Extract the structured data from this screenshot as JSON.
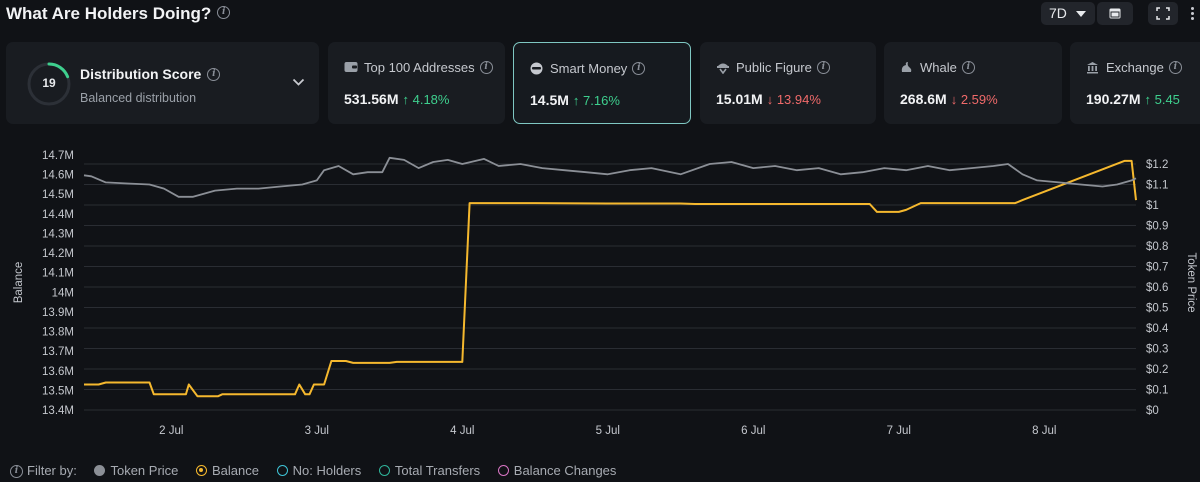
{
  "header": {
    "title": "What Are Holders Doing?",
    "range_label": "7D"
  },
  "distribution": {
    "score": "19",
    "score_fraction": 0.19,
    "title": "Distribution Score",
    "subtitle": "Balanced distribution"
  },
  "cards": [
    {
      "label": "Top 100 Addresses",
      "value": "531.56M",
      "change": "↑ 4.18%",
      "direction": "up",
      "icon": "wallet-icon"
    },
    {
      "label": "Smart Money",
      "value": "14.5M",
      "change": "↑ 7.16%",
      "direction": "up",
      "icon": "smart-money-icon",
      "selected": true
    },
    {
      "label": "Public Figure",
      "value": "15.01M",
      "change": "↓ 13.94%",
      "direction": "down",
      "icon": "public-figure-icon"
    },
    {
      "label": "Whale",
      "value": "268.6M",
      "change": "↓ 2.59%",
      "direction": "down",
      "icon": "whale-icon"
    },
    {
      "label": "Exchange",
      "value": "190.27M",
      "change": "↑ 5.45",
      "direction": "up",
      "icon": "exchange-icon"
    }
  ],
  "colors": {
    "balance": "#f5b82e",
    "token_price": "#8b8f96",
    "up": "#3ecf8e",
    "down": "#f06a6a",
    "holders": "#3ec3d6",
    "transfers": "#2fb59a",
    "balance_changes": "#d874c4"
  },
  "chart_data": {
    "type": "line",
    "ylabel": "Balance",
    "y2label": "Token Price",
    "ylim": [
      13.4,
      14.7
    ],
    "y2lim": [
      0,
      1.2
    ],
    "left_ticks": [
      "14.7M",
      "14.6M",
      "14.5M",
      "14.4M",
      "14.3M",
      "14.2M",
      "14.1M",
      "14M",
      "13.9M",
      "13.8M",
      "13.7M",
      "13.6M",
      "13.5M",
      "13.4M"
    ],
    "right_ticks": [
      "$1.2",
      "$1.1",
      "$1",
      "$0.9",
      "$0.8",
      "$0.7",
      "$0.6",
      "$0.5",
      "$0.4",
      "$0.3",
      "$0.2",
      "$0.1",
      "$0"
    ],
    "x_ticks": [
      {
        "label": "2 Jul",
        "x": 2
      },
      {
        "label": "3 Jul",
        "x": 3
      },
      {
        "label": "4 Jul",
        "x": 4
      },
      {
        "label": "5 Jul",
        "x": 5
      },
      {
        "label": "6 Jul",
        "x": 6
      },
      {
        "label": "7 Jul",
        "x": 7
      },
      {
        "label": "8 Jul",
        "x": 8
      }
    ],
    "xlim": [
      1.4,
      8.63
    ],
    "grid": true,
    "series": [
      {
        "name": "Balance",
        "axis": "left",
        "x": [
          1.4,
          1.5,
          1.55,
          1.6,
          1.85,
          1.88,
          1.95,
          2.1,
          2.12,
          2.18,
          2.3,
          2.32,
          2.35,
          2.85,
          2.88,
          2.92,
          2.95,
          2.98,
          3.05,
          3.1,
          3.2,
          3.25,
          3.5,
          3.55,
          4.0,
          4.05,
          4.5,
          5.0,
          5.5,
          5.6,
          5.65,
          6.0,
          6.5,
          6.8,
          6.85,
          6.9,
          7.0,
          7.05,
          7.15,
          7.2,
          7.8,
          7.85,
          8.55,
          8.6,
          8.63
        ],
        "y": [
          13.53,
          13.53,
          13.54,
          13.54,
          13.54,
          13.48,
          13.48,
          13.48,
          13.53,
          13.47,
          13.47,
          13.47,
          13.48,
          13.48,
          13.53,
          13.48,
          13.48,
          13.53,
          13.53,
          13.65,
          13.65,
          13.64,
          13.64,
          13.645,
          13.645,
          14.455,
          14.455,
          14.453,
          14.453,
          14.45,
          14.45,
          14.45,
          14.45,
          14.45,
          14.41,
          14.41,
          14.41,
          14.42,
          14.455,
          14.455,
          14.455,
          14.47,
          14.67,
          14.67,
          14.47
        ]
      },
      {
        "name": "Token Price",
        "axis": "right",
        "x": [
          1.4,
          1.45,
          1.55,
          1.7,
          1.85,
          1.95,
          2.05,
          2.15,
          2.3,
          2.45,
          2.6,
          2.75,
          2.9,
          3.0,
          3.05,
          3.15,
          3.25,
          3.35,
          3.45,
          3.5,
          3.6,
          3.7,
          3.8,
          3.9,
          4.0,
          4.15,
          4.25,
          4.4,
          4.55,
          4.7,
          4.85,
          5.0,
          5.15,
          5.3,
          5.5,
          5.7,
          5.85,
          6.0,
          6.15,
          6.3,
          6.45,
          6.6,
          6.75,
          6.9,
          7.05,
          7.2,
          7.35,
          7.5,
          7.65,
          7.75,
          7.85,
          7.95,
          8.1,
          8.25,
          8.4,
          8.5,
          8.6,
          8.63
        ],
        "y": [
          1.145,
          1.14,
          1.11,
          1.105,
          1.1,
          1.08,
          1.04,
          1.04,
          1.07,
          1.08,
          1.08,
          1.09,
          1.1,
          1.12,
          1.17,
          1.19,
          1.15,
          1.16,
          1.16,
          1.23,
          1.22,
          1.18,
          1.21,
          1.22,
          1.2,
          1.225,
          1.19,
          1.2,
          1.18,
          1.17,
          1.16,
          1.15,
          1.17,
          1.18,
          1.15,
          1.2,
          1.21,
          1.18,
          1.19,
          1.17,
          1.18,
          1.15,
          1.16,
          1.18,
          1.17,
          1.19,
          1.17,
          1.18,
          1.19,
          1.2,
          1.15,
          1.12,
          1.11,
          1.1,
          1.09,
          1.1,
          1.12,
          1.13
        ]
      }
    ]
  },
  "filters": {
    "label": "Filter by:",
    "items": [
      {
        "label": "Token Price",
        "color": "#8b8f96",
        "style": "solid",
        "selected": false
      },
      {
        "label": "Balance",
        "color": "#f5b82e",
        "style": "ring",
        "selected": true
      },
      {
        "label": "No: Holders",
        "color": "#3ec3d6",
        "style": "ring",
        "selected": false
      },
      {
        "label": "Total Transfers",
        "color": "#2fb59a",
        "style": "ring",
        "selected": false
      },
      {
        "label": "Balance Changes",
        "color": "#d874c4",
        "style": "ring",
        "selected": false
      }
    ]
  }
}
